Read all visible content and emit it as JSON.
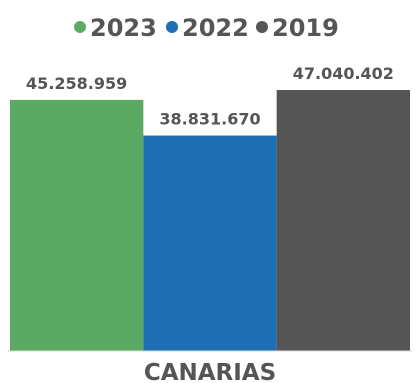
{
  "chart_data": {
    "type": "bar",
    "categories": [
      "CANARIAS"
    ],
    "series": [
      {
        "name": "2023",
        "values": [
          45258959
        ],
        "label": "45.258.959",
        "color": "#5aaa63"
      },
      {
        "name": "2022",
        "values": [
          38831670
        ],
        "label": "38.831.670",
        "color": "#1f6fb5"
      },
      {
        "name": "2019",
        "values": [
          47040402
        ],
        "label": "47.040.402",
        "color": "#555555"
      }
    ],
    "legend_position": "top",
    "grid": false,
    "ylim": [
      0,
      50000000
    ]
  }
}
